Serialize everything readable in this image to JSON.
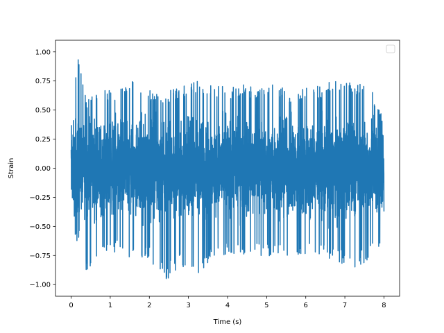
{
  "chart_data": {
    "type": "line",
    "title": "",
    "xlabel": "Time (s)",
    "ylabel": "Strain",
    "xlim": [
      -0.4,
      8.4
    ],
    "ylim": [
      -1.1,
      1.1
    ],
    "xticks": [
      0,
      1,
      2,
      3,
      4,
      5,
      6,
      7,
      8
    ],
    "xtick_labels": [
      "0",
      "1",
      "2",
      "3",
      "4",
      "5",
      "6",
      "7",
      "8"
    ],
    "yticks": [
      -1.0,
      -0.75,
      -0.5,
      -0.25,
      0.0,
      0.25,
      0.5,
      0.75,
      1.0
    ],
    "ytick_labels": [
      "−1.00",
      "−0.75",
      "−0.50",
      "−0.25",
      "0.00",
      "0.25",
      "0.50",
      "0.75",
      "1.00"
    ],
    "grid": false,
    "legend": {
      "placement": "top-right",
      "entries": []
    },
    "series": [
      {
        "color": "#1f77b4",
        "x_start": 0,
        "x_end": 8,
        "y_min": -0.98,
        "y_max": 1.0,
        "envelope_x": [
          0,
          0.2,
          0.4,
          0.8,
          1.2,
          1.6,
          2.0,
          2.4,
          2.8,
          3.2,
          3.6,
          4.0,
          4.4,
          4.8,
          5.2,
          5.6,
          6.0,
          6.4,
          6.8,
          7.2,
          7.6,
          8.0
        ],
        "envelope_upper": [
          0.55,
          1.0,
          0.6,
          0.68,
          0.68,
          0.76,
          0.68,
          0.65,
          0.7,
          0.75,
          0.73,
          0.7,
          0.72,
          0.68,
          0.75,
          0.64,
          0.72,
          0.7,
          0.8,
          0.72,
          0.76,
          0.4
        ],
        "envelope_lower": [
          -0.63,
          -0.62,
          -0.91,
          -0.7,
          -0.73,
          -0.82,
          -0.78,
          -0.98,
          -0.83,
          -0.93,
          -0.78,
          -0.75,
          -0.75,
          -0.75,
          -0.76,
          -0.79,
          -0.75,
          -0.77,
          -0.81,
          -0.86,
          -0.8,
          -0.63
        ]
      }
    ]
  }
}
